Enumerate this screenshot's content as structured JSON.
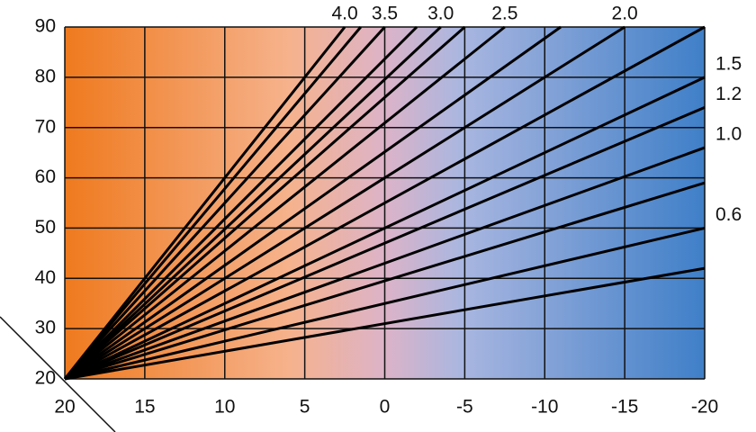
{
  "chart_data": {
    "type": "line",
    "xlim": [
      20,
      -20
    ],
    "xticks": [
      20,
      15,
      10,
      5,
      0,
      -5,
      -10,
      -15,
      -20
    ],
    "ylim": [
      20,
      90
    ],
    "yticks": [
      20,
      30,
      40,
      50,
      60,
      70,
      80,
      90
    ],
    "grid": true,
    "color": "#000000",
    "series": [
      {
        "name": "4.0",
        "x": [
          20,
          2.5
        ],
        "values": [
          20,
          90
        ]
      },
      {
        "x": [
          20,
          1.5
        ],
        "values": [
          20,
          90
        ]
      },
      {
        "name": "3.5",
        "x": [
          20,
          0
        ],
        "values": [
          20,
          90
        ]
      },
      {
        "x": [
          20,
          -2
        ],
        "values": [
          20,
          90
        ]
      },
      {
        "name": "3.0",
        "x": [
          20,
          -3.5
        ],
        "values": [
          20,
          90
        ]
      },
      {
        "x": [
          20,
          -5
        ],
        "values": [
          20,
          90
        ]
      },
      {
        "name": "2.5",
        "x": [
          20,
          -7.5
        ],
        "values": [
          20,
          90
        ]
      },
      {
        "x": [
          20,
          -11
        ],
        "values": [
          20,
          90
        ]
      },
      {
        "name": "2.0",
        "x": [
          20,
          -15
        ],
        "values": [
          20,
          90
        ]
      },
      {
        "x": [
          20,
          -20
        ],
        "values": [
          20,
          90
        ]
      },
      {
        "name": "1.5",
        "x": [
          20,
          -20
        ],
        "values": [
          20,
          80
        ]
      },
      {
        "name": "1.2",
        "x": [
          20,
          -20
        ],
        "values": [
          20,
          74
        ]
      },
      {
        "name": "1.0",
        "x": [
          20,
          -20
        ],
        "values": [
          20,
          66
        ]
      },
      {
        "x": [
          20,
          -20
        ],
        "values": [
          20,
          59
        ]
      },
      {
        "name": "0.6",
        "x": [
          20,
          -20
        ],
        "values": [
          20,
          50
        ]
      },
      {
        "x": [
          20,
          -20
        ],
        "values": [
          20,
          42
        ]
      }
    ]
  }
}
